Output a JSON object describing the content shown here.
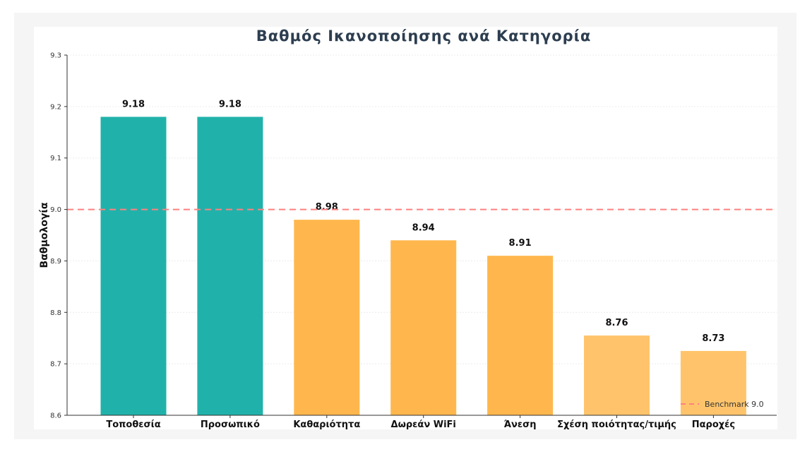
{
  "chart_data": {
    "type": "bar",
    "title": "Βαθμός Ικανοποίησης ανά Κατηγορία",
    "xlabel": "",
    "ylabel": "Βαθμολογία",
    "ylim": [
      8.6,
      9.3
    ],
    "yticks": [
      "8.6",
      "8.7",
      "8.8",
      "8.9",
      "9.0",
      "9.1",
      "9.2",
      "9.3"
    ],
    "categories": [
      "Τοποθεσία",
      "Προσωπικό",
      "Καθαριότητα",
      "Δωρεάν WiFi",
      "Άνεση",
      "Σχέση ποιότητας/τιμής",
      "Παροχές"
    ],
    "values": [
      9.18,
      9.18,
      8.98,
      8.94,
      8.91,
      8.755,
      8.725
    ],
    "value_labels": [
      "9.18",
      "9.18",
      "8.98",
      "8.94",
      "8.91",
      "8.76",
      "8.73"
    ],
    "bar_colors": [
      "#20b2aa",
      "#20b2aa",
      "#ffb74d",
      "#ffb74d",
      "#ffb74d",
      "#ffc46b",
      "#ffc46b"
    ],
    "grid": "horizontal",
    "benchmark": {
      "value": 9.0,
      "label": "Benchmark 9.0",
      "color": "#ff8080"
    },
    "legend": {
      "placement": "bottom-right"
    }
  }
}
